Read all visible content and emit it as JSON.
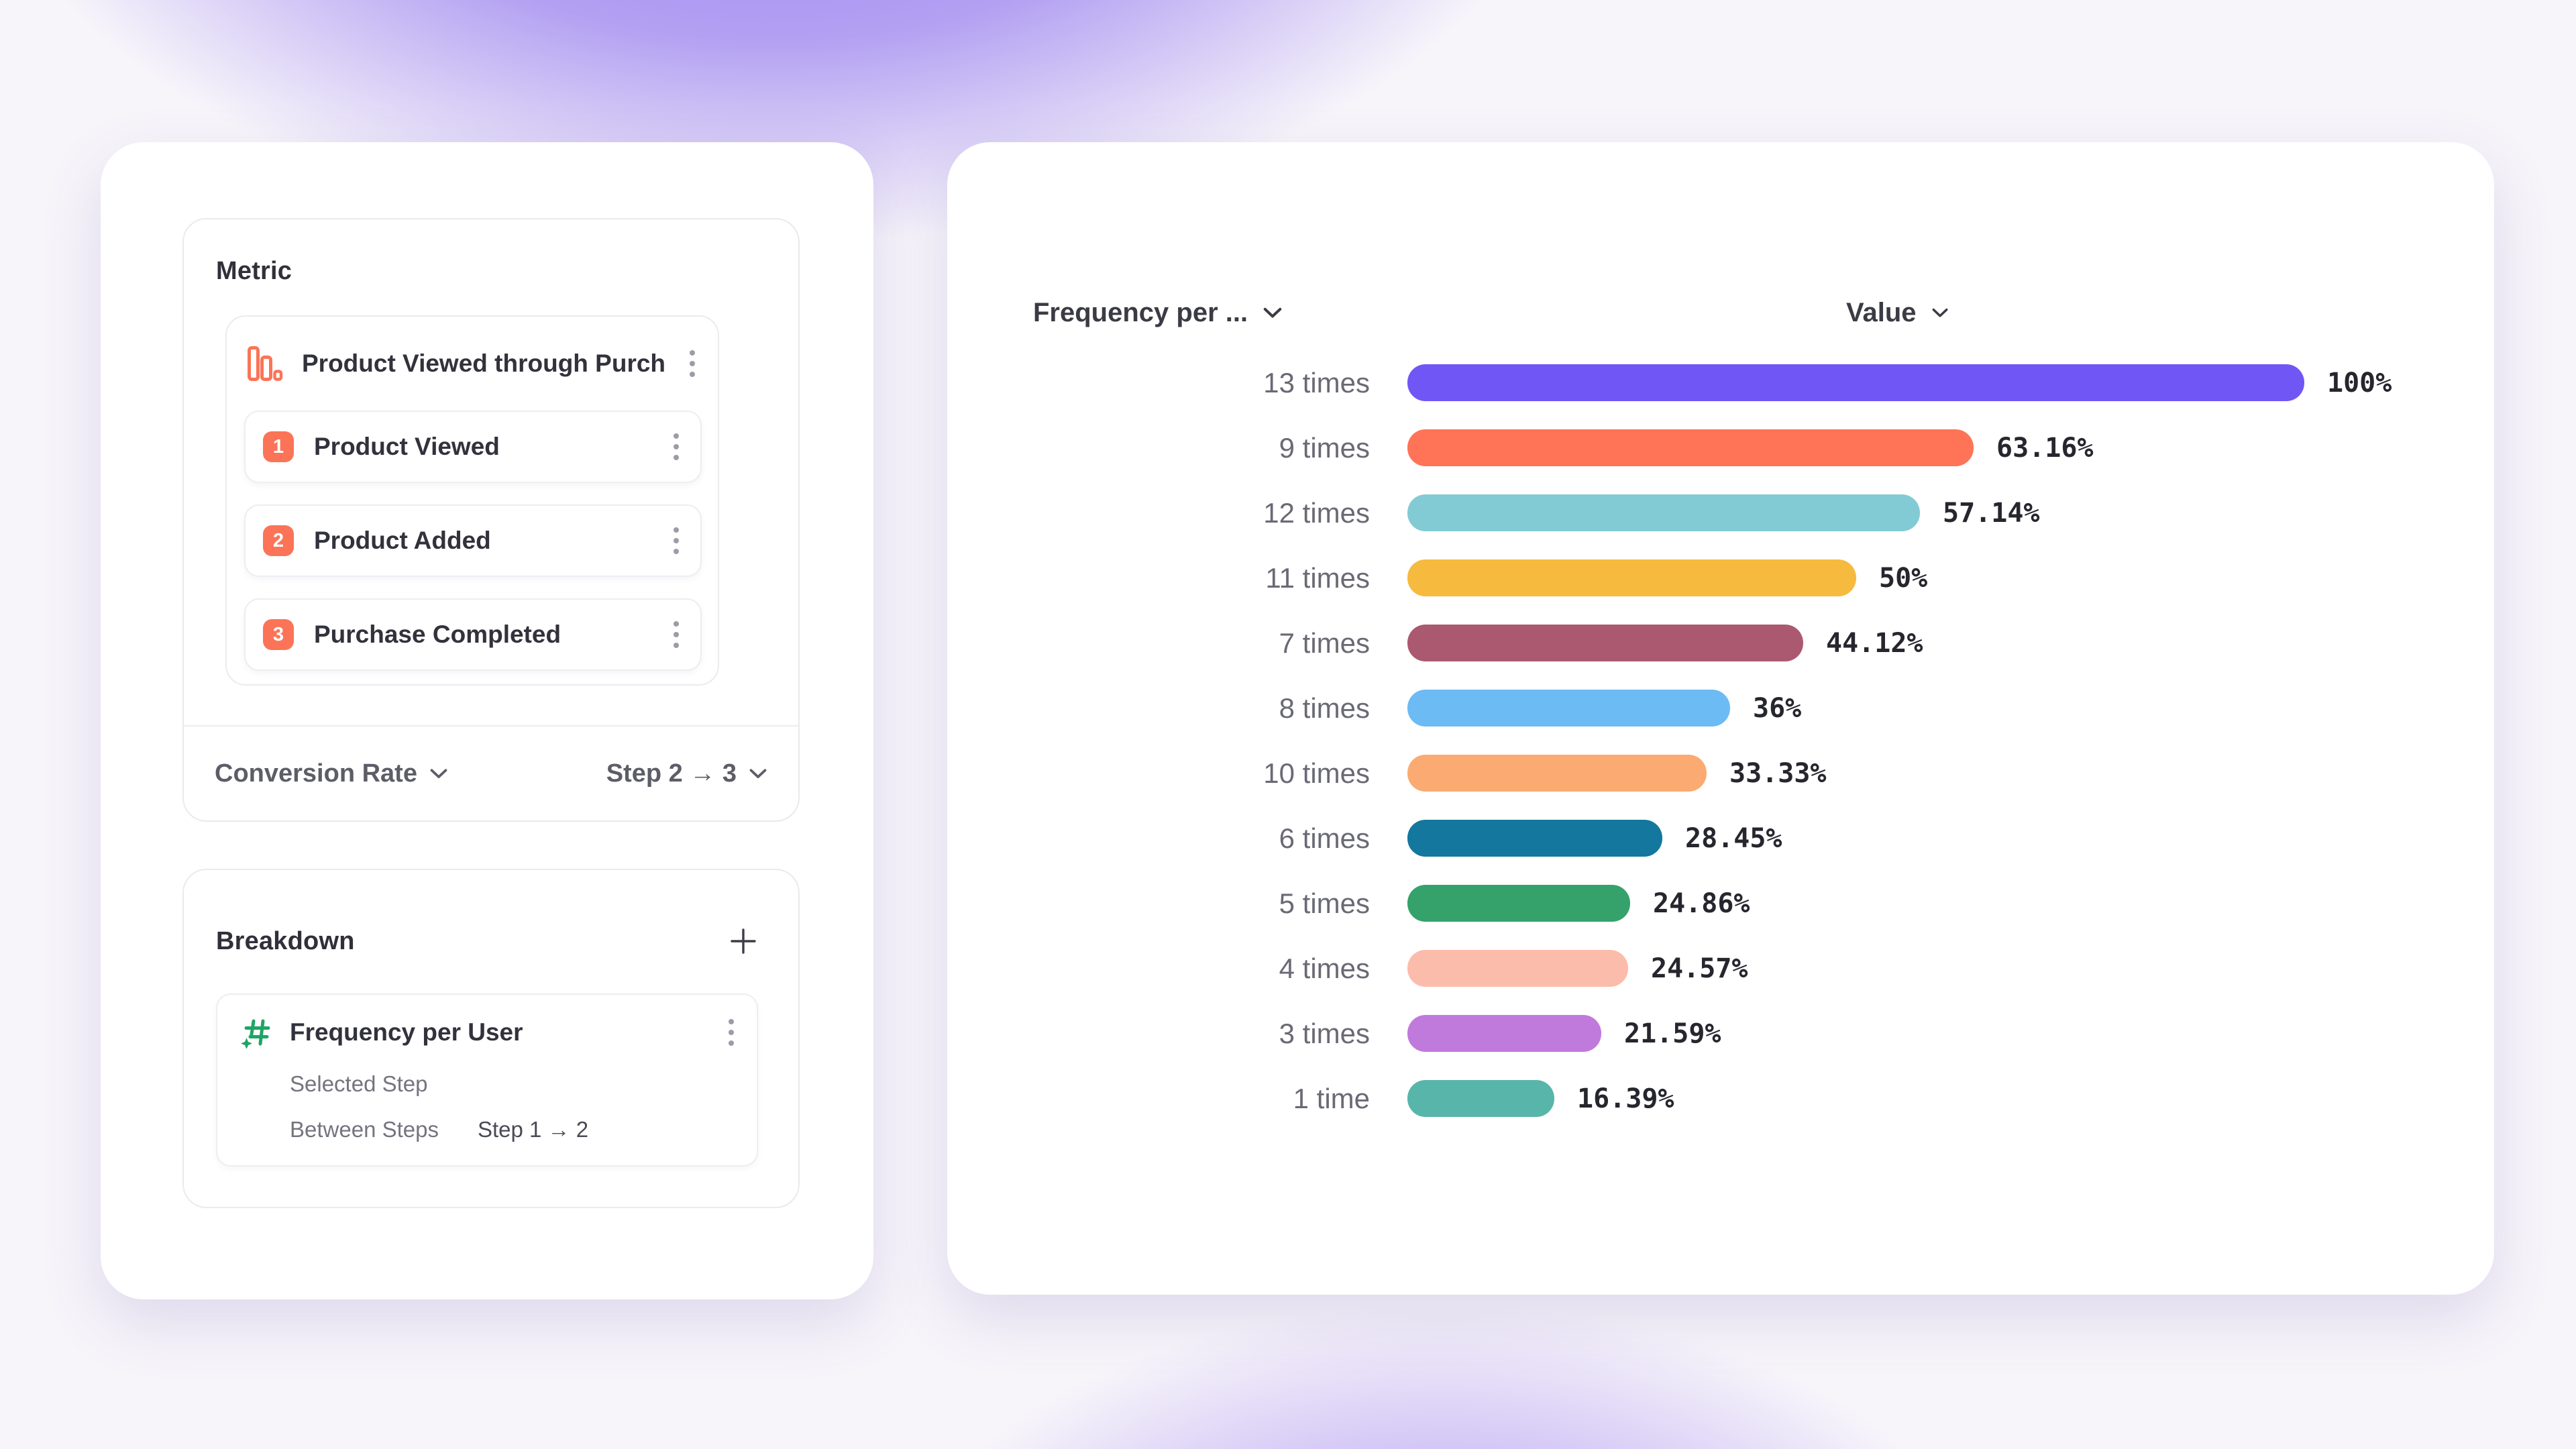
{
  "left_panel": {
    "metric_section": {
      "title": "Metric",
      "funnel": {
        "title": "Product Viewed through Purch...",
        "steps": [
          {
            "number": "1",
            "label": "Product Viewed"
          },
          {
            "number": "2",
            "label": "Product Added"
          },
          {
            "number": "3",
            "label": "Purchase Completed"
          }
        ]
      },
      "footer": {
        "measurement_label": "Conversion Rate",
        "step_range_label": "Step 2 → 3"
      }
    },
    "breakdown_section": {
      "title": "Breakdown",
      "item": {
        "title": "Frequency per User",
        "rows": [
          {
            "label": "Selected Step",
            "value": ""
          },
          {
            "label": "Between Steps",
            "value": "Step 1 → 2"
          }
        ]
      }
    }
  },
  "right_panel": {
    "x_dropdown_label": "Frequency per ...",
    "value_dropdown_label": "Value"
  },
  "chart_data": {
    "type": "bar",
    "orientation": "horizontal",
    "categories": [
      "13 times",
      "9 times",
      "12 times",
      "11 times",
      "7 times",
      "8 times",
      "10 times",
      "6 times",
      "5 times",
      "4 times",
      "3 times",
      "1 time"
    ],
    "values": [
      100,
      63.16,
      57.14,
      50,
      44.12,
      36,
      33.33,
      28.45,
      24.86,
      24.57,
      21.59,
      16.39
    ],
    "value_labels": [
      "100%",
      "63.16%",
      "57.14%",
      "50%",
      "44.12%",
      "36%",
      "33.33%",
      "28.45%",
      "24.86%",
      "24.57%",
      "21.59%",
      "16.39%"
    ],
    "bar_colors": [
      "#7156F6",
      "#FF7357",
      "#82CBD5",
      "#F6BA3E",
      "#AB5970",
      "#6CBBF4",
      "#FBAB71",
      "#13779E",
      "#35A26B",
      "#FCBCAB",
      "#C07ADC",
      "#58B5A9"
    ],
    "xlim": [
      0,
      100
    ],
    "grid": false,
    "legend": false
  },
  "colors": {
    "step_badge": "#FB7457",
    "funnel_icon": "#FB7457",
    "numeric_property_icon": "#1EA565",
    "bar_label_text": "#6A6A76",
    "value_text": "#26262E"
  }
}
